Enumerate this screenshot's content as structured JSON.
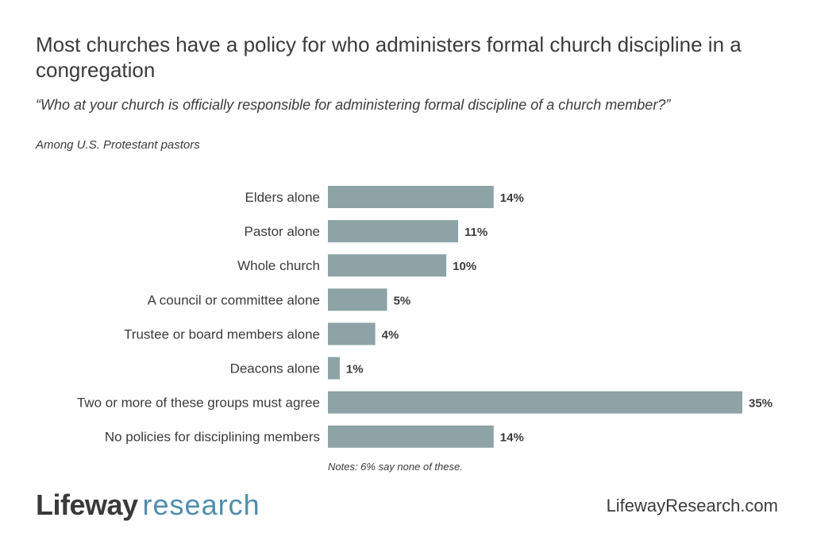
{
  "header": {
    "title": "Most churches have a policy for who administers formal church discipline in a congregation",
    "question": "“Who at your church is officially responsible for administering formal discipline of a church member?”",
    "subtitle": "Among U.S. Protestant pastors"
  },
  "chart_data": {
    "type": "bar",
    "orientation": "horizontal",
    "title": "Most churches have a policy for who administers formal church discipline in a congregation",
    "categories": [
      "Elders alone",
      "Pastor alone",
      "Whole church",
      "A council or committee alone",
      "Trustee or board members alone",
      "Deacons alone",
      "Two or more of these groups must agree",
      "No policies for disciplining members"
    ],
    "values": [
      14,
      11,
      10,
      5,
      4,
      1,
      35,
      14
    ],
    "value_labels": [
      "14%",
      "11%",
      "10%",
      "5%",
      "4%",
      "1%",
      "35%",
      "14%"
    ],
    "xlabel": "",
    "ylabel": "",
    "xlim": [
      0,
      35
    ],
    "grid": false,
    "bar_color": "#8da3a5"
  },
  "footer": {
    "note": "Notes: 6% say none of these.",
    "logo_word1": "Lifeway",
    "logo_word2": "research",
    "site": "LifewayResearch.com"
  },
  "colors": {
    "bar": "#8da3a5",
    "text": "#3b3b3b",
    "logo_accent": "#4f8cae"
  }
}
